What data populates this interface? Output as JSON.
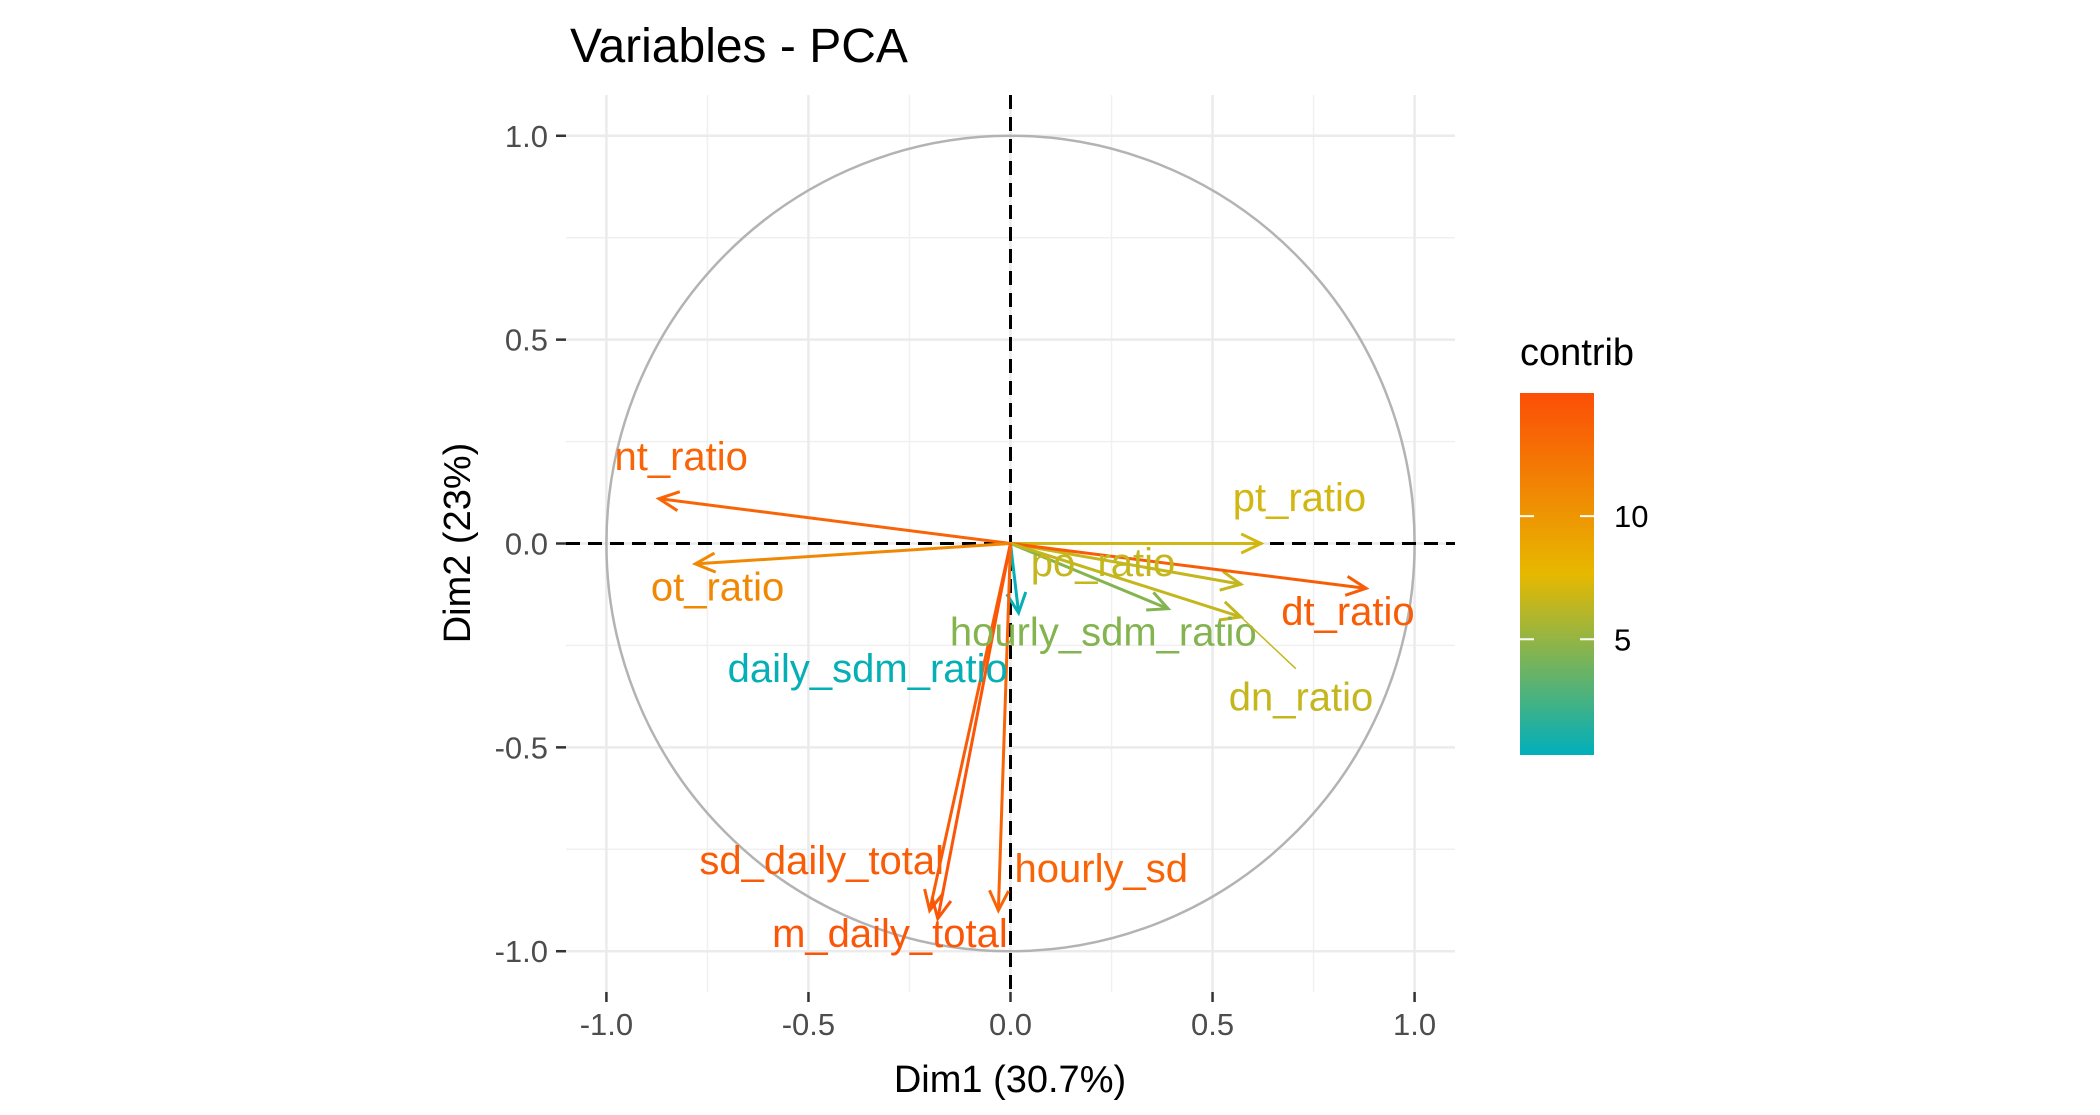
{
  "chart_data": {
    "type": "scatter",
    "title": "Variables - PCA",
    "xlabel": "Dim1 (30.7%)",
    "ylabel": "Dim2 (23%)",
    "xlim": [
      -1.1,
      1.1
    ],
    "ylim": [
      -1.1,
      1.1
    ],
    "x_ticks": [
      {
        "value": -1.0,
        "label": "-1.0"
      },
      {
        "value": -0.5,
        "label": "-0.5"
      },
      {
        "value": 0.0,
        "label": "0.0"
      },
      {
        "value": 0.5,
        "label": "0.5"
      },
      {
        "value": 1.0,
        "label": "1.0"
      }
    ],
    "y_ticks": [
      {
        "value": 1.0,
        "label": "1.0"
      },
      {
        "value": 0.5,
        "label": "0.5"
      },
      {
        "value": 0.0,
        "label": "0.0"
      },
      {
        "value": -0.5,
        "label": "-0.5"
      },
      {
        "value": -1.0,
        "label": "-1.0"
      }
    ],
    "grid": true,
    "correlation_circle": true,
    "variables": [
      {
        "name": "nt_ratio",
        "x": -0.87,
        "y": 0.11,
        "contrib": 13.5,
        "label_x": -0.98,
        "label_y": 0.18
      },
      {
        "name": "ot_ratio",
        "x": -0.78,
        "y": -0.05,
        "contrib": 11.0,
        "label_x": -0.89,
        "label_y": -0.14
      },
      {
        "name": "pt_ratio",
        "x": 0.62,
        "y": 0.0,
        "contrib": 7.0,
        "label_x": 0.55,
        "label_y": 0.08
      },
      {
        "name": "po_ratio",
        "x": 0.57,
        "y": -0.1,
        "contrib": 6.5,
        "label_x": 0.05,
        "label_y": -0.08
      },
      {
        "name": "dt_ratio",
        "x": 0.88,
        "y": -0.11,
        "contrib": 14.0,
        "label_x": 0.67,
        "label_y": -0.2
      },
      {
        "name": "hourly_sdm_ratio",
        "x": 0.39,
        "y": -0.16,
        "contrib": 4.5,
        "label_x": -0.15,
        "label_y": -0.25
      },
      {
        "name": "dn_ratio",
        "x": 0.57,
        "y": -0.18,
        "contrib": 6.5,
        "label_x": 0.54,
        "label_y": -0.41
      },
      {
        "name": "daily_sdm_ratio",
        "x": 0.02,
        "y": -0.17,
        "contrib": 0.5,
        "label_x": -0.7,
        "label_y": -0.34
      },
      {
        "name": "sd_daily_total",
        "x": -0.2,
        "y": -0.9,
        "contrib": 14.0,
        "label_x": -0.77,
        "label_y": -0.81
      },
      {
        "name": "m_daily_total",
        "x": -0.18,
        "y": -0.92,
        "contrib": 14.5,
        "label_x": -0.59,
        "label_y": -0.99
      },
      {
        "name": "hourly_sd",
        "x": -0.03,
        "y": -0.9,
        "contrib": 13.5,
        "label_x": 0.01,
        "label_y": -0.83
      }
    ],
    "legend": {
      "title": "contrib",
      "position": "right",
      "min": 0.3,
      "max": 15,
      "ticks": [
        {
          "value": 5,
          "label": "5"
        },
        {
          "value": 10,
          "label": "10"
        }
      ],
      "gradient": [
        "#00AFBB",
        "#E7B800",
        "#FC4E07"
      ]
    }
  }
}
